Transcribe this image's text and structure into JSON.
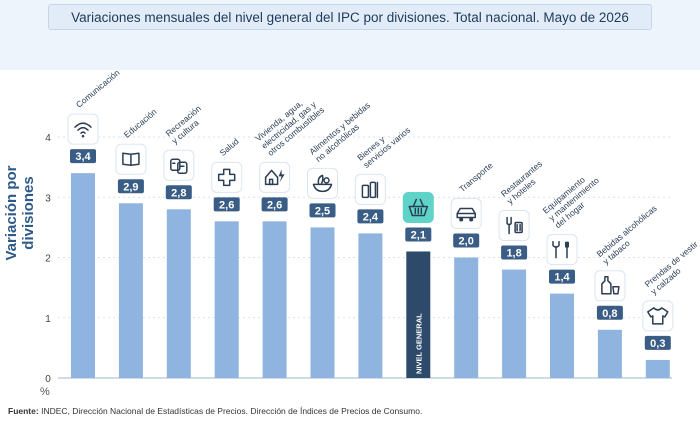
{
  "title": "Variaciones mensuales del nivel general del IPC por divisiones. Total nacional. Mayo de 2026",
  "ylabel": "Variación por divisiones",
  "unit": "%",
  "source_label": "Fuente:",
  "source_text": "INDEC, Dirección Nacional de Estadísticas de Precios. Dirección de Índices de Precios de Consumo.",
  "colors": {
    "bar": "#8fb4e0",
    "highlight": "#2e4a6b",
    "label_bg": "#3a5d86",
    "highlight_icon_bg": "#5fd3c8"
  },
  "chart_data": {
    "type": "bar",
    "title": "Variaciones mensuales del nivel general del IPC por divisiones. Total nacional. Mayo de 2026",
    "ylabel": "Variación por divisiones",
    "xlabel": "",
    "ylim": [
      0,
      4
    ],
    "yticks": [
      "0",
      "1",
      "2",
      "3",
      "4"
    ],
    "grid": true,
    "categories": [
      [
        "Comunicación"
      ],
      [
        "Educación"
      ],
      [
        "Recreación",
        "y cultura"
      ],
      [
        "Salud"
      ],
      [
        "Vivienda, agua,",
        "electricidad, gas y",
        "otros combustibles"
      ],
      [
        "Alimentos y bebidas",
        "no alcohólicas"
      ],
      [
        "Bienes y",
        "servicios varios"
      ],
      [
        "NIVEL GENERAL"
      ],
      [
        "Transporte"
      ],
      [
        "Restaurantes",
        "y hoteles"
      ],
      [
        "Equipamiento",
        "y mantenimiento",
        "del hogar"
      ],
      [
        "Bebidas alcohólicas",
        "y tabaco"
      ],
      [
        "Prendas de vestir",
        "y calzado"
      ]
    ],
    "values": [
      3.4,
      2.9,
      2.8,
      2.6,
      2.6,
      2.5,
      2.4,
      2.1,
      2.0,
      1.8,
      1.4,
      0.8,
      0.3
    ],
    "value_labels": [
      "3,4",
      "2,9",
      "2,8",
      "2,6",
      "2,6",
      "2,5",
      "2,4",
      "2,1",
      "2,0",
      "1,8",
      "1,4",
      "0,8",
      "0,3"
    ],
    "icons": [
      "wifi-icon",
      "book-icon",
      "theater-masks-icon",
      "cross-icon",
      "house-bolt-icon",
      "food-icon",
      "toiletries-icon",
      "basket-icon",
      "car-icon",
      "fork-knife-icon",
      "tools-icon",
      "bottle-glass-icon",
      "shirt-icon"
    ],
    "highlight_index": 7
  }
}
